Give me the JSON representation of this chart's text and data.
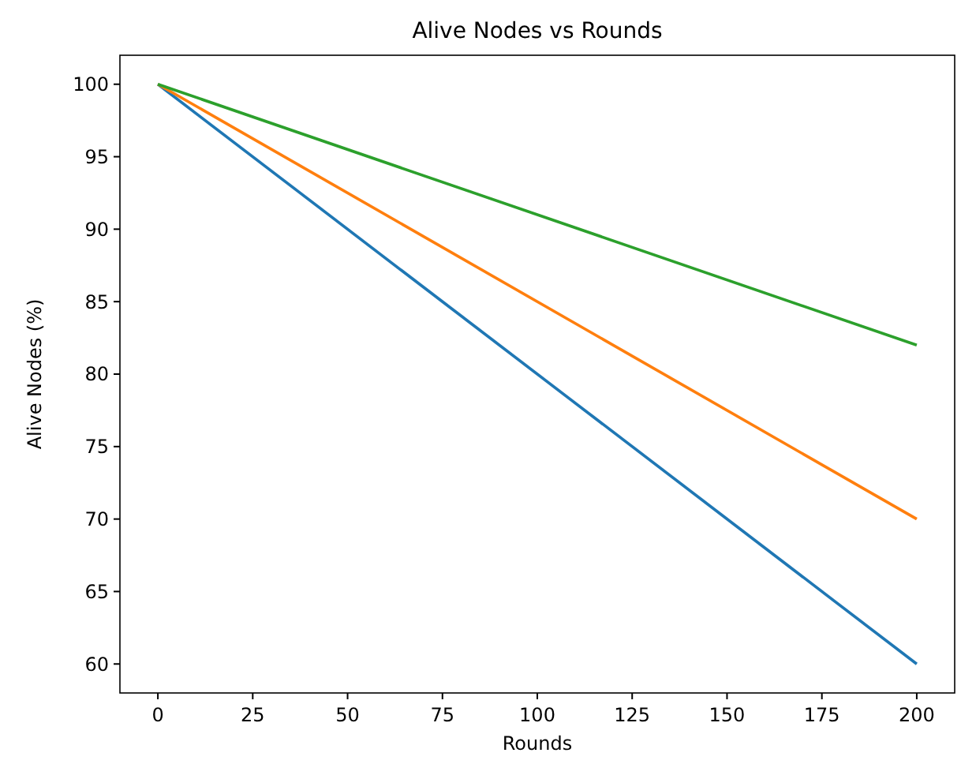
{
  "chart_data": {
    "type": "line",
    "title": "Alive Nodes vs Rounds",
    "xlabel": "Rounds",
    "ylabel": "Alive Nodes (%)",
    "x": [
      0,
      200
    ],
    "series": [
      {
        "color": "#1f77b4",
        "values": [
          100,
          60
        ]
      },
      {
        "color": "#ff7f0e",
        "values": [
          100,
          70
        ]
      },
      {
        "color": "#2ca02c",
        "values": [
          100,
          82
        ]
      }
    ],
    "xlim": [
      -10,
      210
    ],
    "xticks": [
      0,
      25,
      50,
      75,
      100,
      125,
      150,
      175,
      200
    ],
    "ylim": [
      58,
      102
    ],
    "yticks": [
      60,
      65,
      70,
      75,
      80,
      85,
      90,
      95,
      100
    ],
    "grid": false,
    "marker": "none",
    "line_style": "solid"
  }
}
